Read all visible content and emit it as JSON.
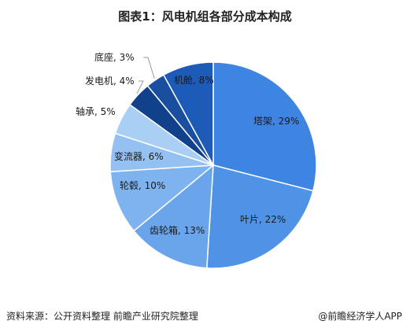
{
  "title": "图表1：风电机组各部分成本构成",
  "chart_data": {
    "type": "pie",
    "slices": [
      {
        "label": "塔架, 29%",
        "value": 29,
        "color": "#3d85e0"
      },
      {
        "label": "叶片, 22%",
        "value": 22,
        "color": "#4f93e6"
      },
      {
        "label": "齿轮箱, 13%",
        "value": 13,
        "color": "#6aa5ec"
      },
      {
        "label": "轮毂, 10%",
        "value": 10,
        "color": "#7fb3ef"
      },
      {
        "label": "变流器, 6%",
        "value": 6,
        "color": "#94c1f2"
      },
      {
        "label": "轴承, 5%",
        "value": 5,
        "color": "#a9cff5"
      },
      {
        "label": "发电机, 4%",
        "value": 4,
        "color": "#12418c"
      },
      {
        "label": "底座, 3%",
        "value": 3,
        "color": "#1a4fa0"
      },
      {
        "label": "机舱, 8%",
        "value": 8,
        "color": "#1d5bb8"
      }
    ]
  },
  "footer": {
    "source": "资料来源：公开资料整理 前瞻产业研究院整理",
    "brand": "@前瞻经济学人APP"
  }
}
